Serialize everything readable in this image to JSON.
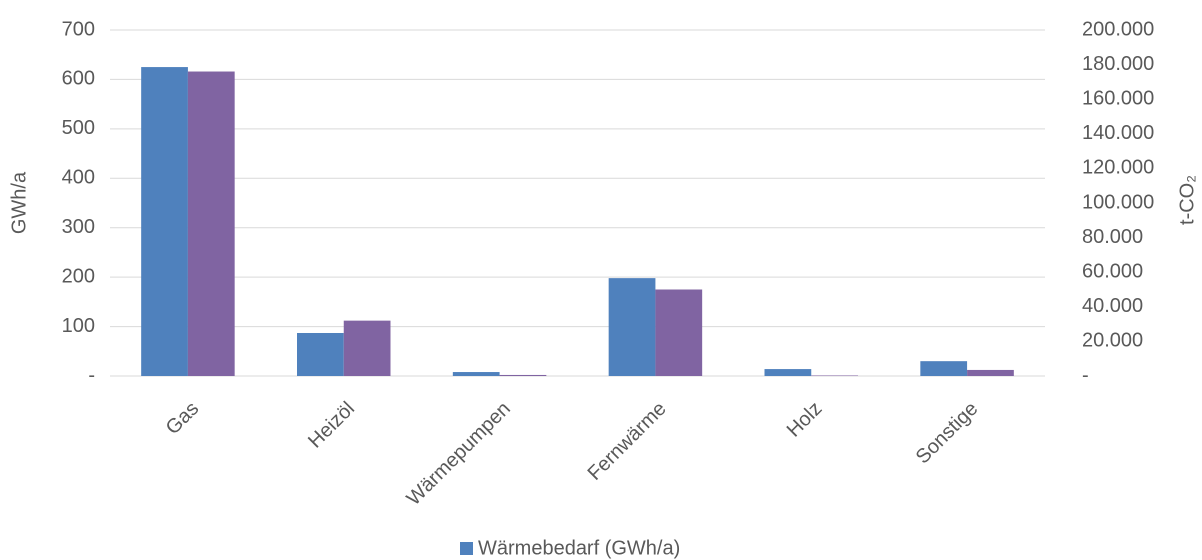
{
  "chart_data": {
    "type": "bar",
    "categories": [
      "Gas",
      "Heizöl",
      "Wärmepumpen",
      "Fernwärme",
      "Holz",
      "Sonstige"
    ],
    "series": [
      {
        "name": "Wärmebedarf (GWh/a)",
        "color": "#4f81bd",
        "values": [
          625,
          87,
          8,
          198,
          14,
          30
        ]
      },
      {
        "color": "#8064a2",
        "axis": "y2",
        "values": [
          176000,
          32000,
          600,
          50000,
          300,
          3500
        ]
      }
    ],
    "ylabel": "GWh/a",
    "y2label": "t-CO₂",
    "ylim": [
      0,
      700
    ],
    "yticks": [
      {
        "value": 0,
        "label": "-"
      },
      100,
      200,
      300,
      400,
      500,
      600,
      700
    ],
    "y2lim": [
      0,
      200000
    ],
    "y2ticks": [
      {
        "value": 0,
        "label": "-"
      },
      {
        "value": 20000,
        "label": "20.000"
      },
      {
        "value": 40000,
        "label": "40.000"
      },
      {
        "value": 60000,
        "label": "60.000"
      },
      {
        "value": 80000,
        "label": "80.000"
      },
      {
        "value": 100000,
        "label": "100.000"
      },
      {
        "value": 120000,
        "label": "120.000"
      },
      {
        "value": 140000,
        "label": "140.000"
      },
      {
        "value": 160000,
        "label": "160.000"
      },
      {
        "value": 180000,
        "label": "180.000"
      },
      {
        "value": 200000,
        "label": "200.000"
      }
    ],
    "grid": true,
    "legend": "bottom"
  }
}
